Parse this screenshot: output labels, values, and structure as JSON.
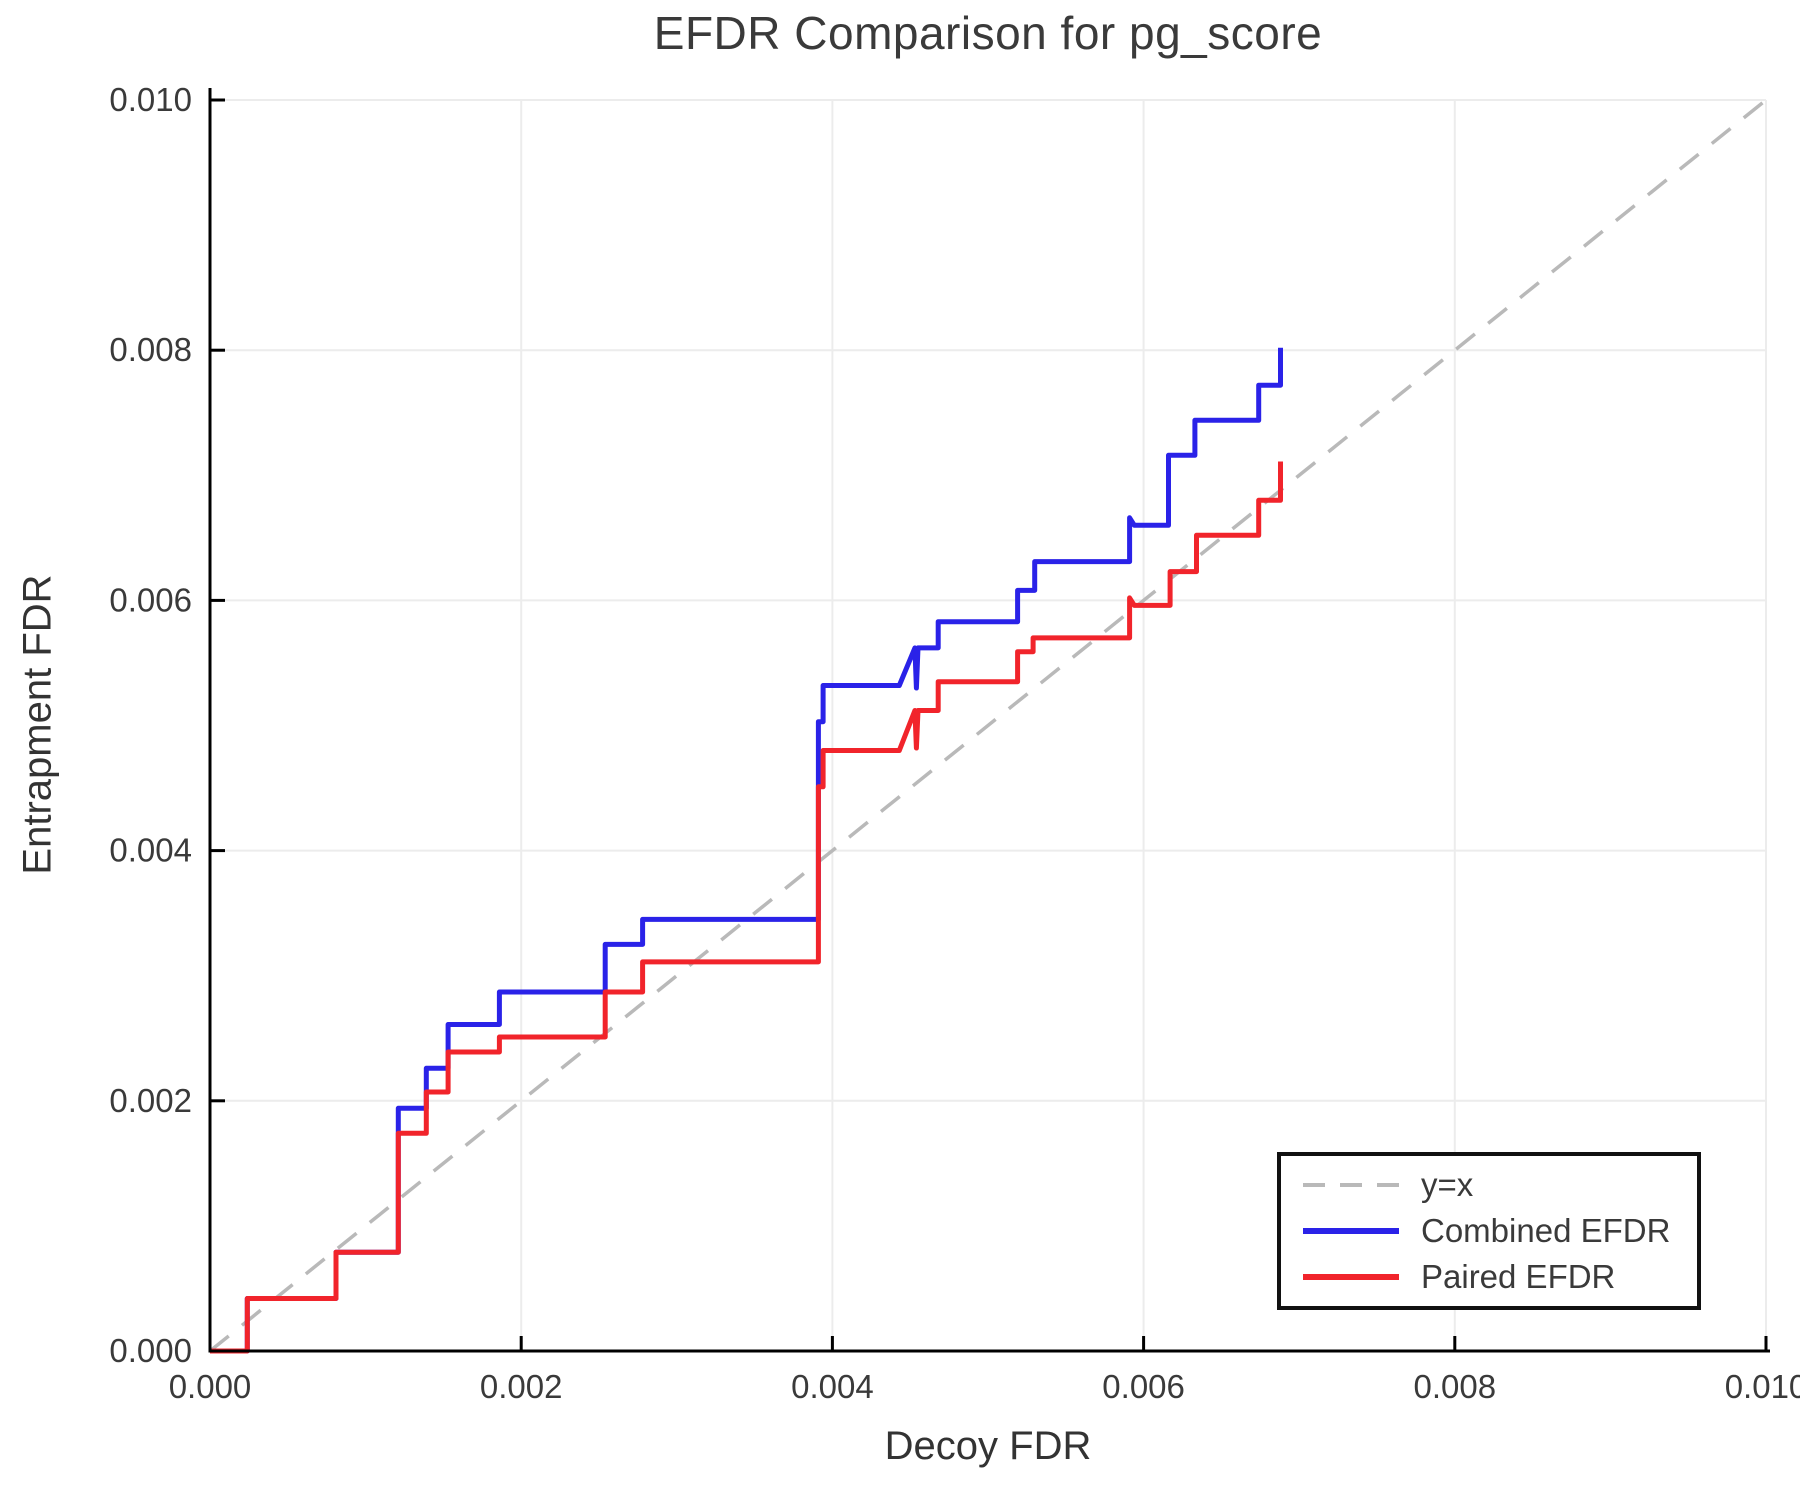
{
  "chart_data": {
    "type": "line",
    "title": "EFDR Comparison for pg_score",
    "xlabel": "Decoy FDR",
    "ylabel": "Entrapment FDR",
    "xlim": [
      0,
      0.01
    ],
    "ylim": [
      0,
      0.01
    ],
    "xticks": [
      "0.000",
      "0.002",
      "0.004",
      "0.006",
      "0.008",
      "0.010"
    ],
    "yticks": [
      "0.000",
      "0.002",
      "0.004",
      "0.006",
      "0.008",
      "0.010"
    ],
    "grid": true,
    "legend_position": "lower-right",
    "colors": {
      "grid": "#ececec",
      "spine": "#000000",
      "identity": "#b9b9b9",
      "combined": "#2a22e8",
      "paired": "#f1242b",
      "text": "#3a3a3a"
    },
    "series": [
      {
        "name": "y=x",
        "style": "dashed",
        "color": "#b9b9b9",
        "width": 3.5,
        "points": [
          [
            0,
            0
          ],
          [
            0.01,
            0.01
          ]
        ]
      },
      {
        "name": "Combined EFDR",
        "style": "solid",
        "color": "#2a22e8",
        "width": 5,
        "points": [
          [
            0.0,
            0.0
          ],
          [
            0.00024,
            0.0
          ],
          [
            0.00024,
            0.00042
          ],
          [
            0.00081,
            0.00042
          ],
          [
            0.00081,
            0.00079
          ],
          [
            0.00121,
            0.00079
          ],
          [
            0.00121,
            0.00194
          ],
          [
            0.00139,
            0.00194
          ],
          [
            0.00139,
            0.00226
          ],
          [
            0.00153,
            0.00226
          ],
          [
            0.00153,
            0.00261
          ],
          [
            0.00186,
            0.00261
          ],
          [
            0.00186,
            0.00287
          ],
          [
            0.00254,
            0.00287
          ],
          [
            0.00254,
            0.00325
          ],
          [
            0.00278,
            0.00325
          ],
          [
            0.00278,
            0.00345
          ],
          [
            0.00391,
            0.00345
          ],
          [
            0.00391,
            0.00503
          ],
          [
            0.00394,
            0.00503
          ],
          [
            0.00394,
            0.00532
          ],
          [
            0.00443,
            0.00532
          ],
          [
            0.00453,
            0.00562
          ],
          [
            0.00454,
            0.0053
          ],
          [
            0.00455,
            0.00562
          ],
          [
            0.00468,
            0.00562
          ],
          [
            0.00468,
            0.00583
          ],
          [
            0.00519,
            0.00583
          ],
          [
            0.00519,
            0.00608
          ],
          [
            0.0053,
            0.00608
          ],
          [
            0.0053,
            0.00631
          ],
          [
            0.00591,
            0.00631
          ],
          [
            0.00591,
            0.00666
          ],
          [
            0.00594,
            0.0066
          ],
          [
            0.00616,
            0.0066
          ],
          [
            0.00616,
            0.00716
          ],
          [
            0.00633,
            0.00716
          ],
          [
            0.00633,
            0.00744
          ],
          [
            0.00674,
            0.00744
          ],
          [
            0.00674,
            0.00772
          ],
          [
            0.00688,
            0.00772
          ],
          [
            0.00688,
            0.00802
          ]
        ]
      },
      {
        "name": "Paired EFDR",
        "style": "solid",
        "color": "#f1242b",
        "width": 5,
        "points": [
          [
            0.0,
            0.0
          ],
          [
            0.00024,
            0.0
          ],
          [
            0.00024,
            0.00042
          ],
          [
            0.00081,
            0.00042
          ],
          [
            0.00081,
            0.00079
          ],
          [
            0.00121,
            0.00079
          ],
          [
            0.00121,
            0.00174
          ],
          [
            0.00139,
            0.00174
          ],
          [
            0.00139,
            0.00207
          ],
          [
            0.00153,
            0.00207
          ],
          [
            0.00153,
            0.00239
          ],
          [
            0.00186,
            0.00239
          ],
          [
            0.00186,
            0.00251
          ],
          [
            0.00254,
            0.00251
          ],
          [
            0.00254,
            0.00287
          ],
          [
            0.00278,
            0.00287
          ],
          [
            0.00278,
            0.00311
          ],
          [
            0.00391,
            0.00311
          ],
          [
            0.00391,
            0.00451
          ],
          [
            0.00394,
            0.00451
          ],
          [
            0.00394,
            0.0048
          ],
          [
            0.00443,
            0.0048
          ],
          [
            0.00453,
            0.00512
          ],
          [
            0.00454,
            0.00482
          ],
          [
            0.00455,
            0.00512
          ],
          [
            0.00468,
            0.00512
          ],
          [
            0.00468,
            0.00535
          ],
          [
            0.00519,
            0.00535
          ],
          [
            0.00519,
            0.00559
          ],
          [
            0.00529,
            0.00559
          ],
          [
            0.00529,
            0.0057
          ],
          [
            0.00591,
            0.0057
          ],
          [
            0.00591,
            0.00602
          ],
          [
            0.00594,
            0.00596
          ],
          [
            0.00617,
            0.00596
          ],
          [
            0.00617,
            0.00623
          ],
          [
            0.00634,
            0.00623
          ],
          [
            0.00634,
            0.00652
          ],
          [
            0.00674,
            0.00652
          ],
          [
            0.00674,
            0.0068
          ],
          [
            0.00688,
            0.0068
          ],
          [
            0.00688,
            0.00711
          ]
        ]
      }
    ]
  }
}
